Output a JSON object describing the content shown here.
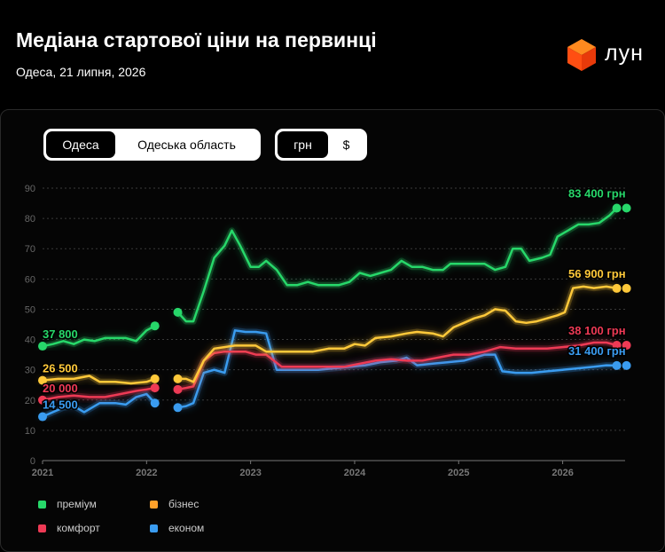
{
  "header": {
    "title": "Медіана стартової ціни на первинці",
    "subtitle": "Одеса, 21 липня, 2026",
    "logo_text": "лун"
  },
  "controls": {
    "region_tabs": [
      {
        "label": "Одеса",
        "active": true
      },
      {
        "label": "Одеська область",
        "active": false
      }
    ],
    "currency_tabs": [
      {
        "label": "грн",
        "active": true
      },
      {
        "label": "$",
        "active": false
      }
    ]
  },
  "colors": {
    "premium": "#27d86a",
    "business": "#ffc93a",
    "comfort": "#ee3a55",
    "econom": "#3a9cf0"
  },
  "chart_data": {
    "type": "line",
    "ylim": [
      0,
      90
    ],
    "yticks": [
      0,
      10,
      20,
      30,
      40,
      50,
      60,
      70,
      80,
      90
    ],
    "xlim": [
      2021.0,
      2026.6
    ],
    "xticks": [
      {
        "value": 2021,
        "label": "2021"
      },
      {
        "value": 2022,
        "label": "2022"
      },
      {
        "value": 2023,
        "label": "2023"
      },
      {
        "value": 2024,
        "label": "2024"
      },
      {
        "value": 2025,
        "label": "2025"
      },
      {
        "value": 2026,
        "label": "2026"
      }
    ],
    "grid": true,
    "legend_position": "bottom",
    "series": [
      {
        "name": "преміум",
        "key": "premium",
        "segments": [
          [
            [
              2021.0,
              37.8
            ],
            [
              2021.1,
              38.5
            ],
            [
              2021.2,
              39.5
            ],
            [
              2021.3,
              38.5
            ],
            [
              2021.4,
              40
            ],
            [
              2021.5,
              39.5
            ],
            [
              2021.6,
              40.5
            ],
            [
              2021.7,
              40.5
            ],
            [
              2021.8,
              40.5
            ],
            [
              2021.9,
              39.5
            ],
            [
              2022.0,
              43
            ],
            [
              2022.08,
              44.5
            ]
          ],
          [
            [
              2022.3,
              49
            ],
            [
              2022.38,
              46
            ],
            [
              2022.45,
              46
            ],
            [
              2022.55,
              56
            ],
            [
              2022.65,
              67
            ],
            [
              2022.75,
              71
            ],
            [
              2022.82,
              76
            ],
            [
              2022.9,
              71
            ],
            [
              2023.0,
              64
            ],
            [
              2023.08,
              64
            ],
            [
              2023.15,
              66
            ],
            [
              2023.25,
              63
            ],
            [
              2023.35,
              58
            ],
            [
              2023.45,
              58
            ],
            [
              2023.55,
              59
            ],
            [
              2023.65,
              58
            ],
            [
              2023.75,
              58
            ],
            [
              2023.85,
              58
            ],
            [
              2023.95,
              59
            ],
            [
              2024.05,
              62
            ],
            [
              2024.15,
              61
            ],
            [
              2024.25,
              62
            ],
            [
              2024.35,
              63
            ],
            [
              2024.45,
              66
            ],
            [
              2024.55,
              64
            ],
            [
              2024.65,
              64
            ],
            [
              2024.75,
              63
            ],
            [
              2024.85,
              63
            ],
            [
              2024.92,
              65
            ],
            [
              2025.05,
              65
            ],
            [
              2025.15,
              65
            ],
            [
              2025.25,
              65
            ],
            [
              2025.35,
              63
            ],
            [
              2025.45,
              64
            ],
            [
              2025.52,
              70
            ],
            [
              2025.6,
              70
            ],
            [
              2025.68,
              66
            ],
            [
              2025.8,
              67
            ],
            [
              2025.88,
              68
            ],
            [
              2025.95,
              74
            ],
            [
              2026.05,
              76
            ],
            [
              2026.15,
              78
            ],
            [
              2026.25,
              78
            ],
            [
              2026.35,
              78.5
            ],
            [
              2026.45,
              81
            ],
            [
              2026.52,
              83.4
            ]
          ]
        ],
        "start_label": "37 800",
        "end_label": "83 400 грн"
      },
      {
        "name": "бізнес",
        "key": "business",
        "segments": [
          [
            [
              2021.0,
              26.5
            ],
            [
              2021.15,
              27
            ],
            [
              2021.3,
              27
            ],
            [
              2021.45,
              28
            ],
            [
              2021.55,
              26
            ],
            [
              2021.7,
              26
            ],
            [
              2021.85,
              25.5
            ],
            [
              2022.0,
              26
            ],
            [
              2022.08,
              27
            ]
          ],
          [
            [
              2022.3,
              27
            ],
            [
              2022.38,
              27
            ],
            [
              2022.45,
              26
            ],
            [
              2022.55,
              33
            ],
            [
              2022.65,
              37
            ],
            [
              2022.75,
              37.5
            ],
            [
              2022.85,
              38
            ],
            [
              2022.95,
              38
            ],
            [
              2023.05,
              38
            ],
            [
              2023.15,
              36
            ],
            [
              2023.3,
              36
            ],
            [
              2023.45,
              36
            ],
            [
              2023.6,
              36
            ],
            [
              2023.75,
              37
            ],
            [
              2023.9,
              37
            ],
            [
              2024.0,
              38.5
            ],
            [
              2024.1,
              38
            ],
            [
              2024.2,
              40.5
            ],
            [
              2024.35,
              41
            ],
            [
              2024.5,
              42
            ],
            [
              2024.6,
              42.5
            ],
            [
              2024.75,
              42
            ],
            [
              2024.85,
              41
            ],
            [
              2024.95,
              44
            ],
            [
              2025.05,
              45.5
            ],
            [
              2025.15,
              47
            ],
            [
              2025.25,
              48
            ],
            [
              2025.35,
              50
            ],
            [
              2025.45,
              49.5
            ],
            [
              2025.55,
              46
            ],
            [
              2025.65,
              45.5
            ],
            [
              2025.75,
              46
            ],
            [
              2025.85,
              47
            ],
            [
              2025.95,
              48
            ],
            [
              2026.02,
              49
            ],
            [
              2026.1,
              57
            ],
            [
              2026.2,
              57.5
            ],
            [
              2026.3,
              57
            ],
            [
              2026.42,
              57.5
            ],
            [
              2026.52,
              56.9
            ]
          ]
        ],
        "start_label": "26 500",
        "end_label": "56 900 грн"
      },
      {
        "name": "комфорт",
        "key": "comfort",
        "segments": [
          [
            [
              2021.0,
              20
            ],
            [
              2021.15,
              21
            ],
            [
              2021.3,
              21.5
            ],
            [
              2021.45,
              21
            ],
            [
              2021.6,
              21
            ],
            [
              2021.75,
              22
            ],
            [
              2021.9,
              23
            ],
            [
              2022.0,
              23.5
            ],
            [
              2022.08,
              24
            ]
          ],
          [
            [
              2022.3,
              23.5
            ],
            [
              2022.38,
              24
            ],
            [
              2022.45,
              24.5
            ],
            [
              2022.55,
              33
            ],
            [
              2022.65,
              35.5
            ],
            [
              2022.75,
              36
            ],
            [
              2022.85,
              36
            ],
            [
              2022.95,
              36
            ],
            [
              2023.05,
              35
            ],
            [
              2023.15,
              35
            ],
            [
              2023.3,
              31
            ],
            [
              2023.45,
              31
            ],
            [
              2023.6,
              31
            ],
            [
              2023.75,
              31
            ],
            [
              2023.9,
              31
            ],
            [
              2024.05,
              32
            ],
            [
              2024.2,
              33
            ],
            [
              2024.35,
              33.5
            ],
            [
              2024.5,
              33
            ],
            [
              2024.65,
              33
            ],
            [
              2024.8,
              34
            ],
            [
              2024.95,
              35
            ],
            [
              2025.1,
              35
            ],
            [
              2025.25,
              36
            ],
            [
              2025.4,
              37.5
            ],
            [
              2025.55,
              37
            ],
            [
              2025.7,
              37
            ],
            [
              2025.85,
              37
            ],
            [
              2026.0,
              37.5
            ],
            [
              2026.15,
              38
            ],
            [
              2026.3,
              39
            ],
            [
              2026.42,
              39
            ],
            [
              2026.52,
              38.1
            ]
          ]
        ],
        "start_label": "20 000",
        "end_label": "38 100 грн"
      },
      {
        "name": "економ",
        "key": "econom",
        "segments": [
          [
            [
              2021.0,
              14.5
            ],
            [
              2021.1,
              16
            ],
            [
              2021.2,
              17.5
            ],
            [
              2021.3,
              18
            ],
            [
              2021.4,
              16
            ],
            [
              2021.55,
              19
            ],
            [
              2021.7,
              19
            ],
            [
              2021.8,
              18.5
            ],
            [
              2021.9,
              21
            ],
            [
              2022.0,
              22
            ],
            [
              2022.08,
              19
            ]
          ],
          [
            [
              2022.3,
              17.5
            ],
            [
              2022.38,
              18
            ],
            [
              2022.45,
              19
            ],
            [
              2022.55,
              29
            ],
            [
              2022.65,
              30
            ],
            [
              2022.75,
              29
            ],
            [
              2022.85,
              43
            ],
            [
              2022.95,
              42.5
            ],
            [
              2023.05,
              42.5
            ],
            [
              2023.15,
              42
            ],
            [
              2023.25,
              30
            ],
            [
              2023.35,
              30
            ],
            [
              2023.5,
              30
            ],
            [
              2023.65,
              30
            ],
            [
              2023.8,
              30.5
            ],
            [
              2023.95,
              31
            ],
            [
              2024.1,
              31.5
            ],
            [
              2024.25,
              32.5
            ],
            [
              2024.4,
              33
            ],
            [
              2024.5,
              34
            ],
            [
              2024.6,
              31.5
            ],
            [
              2024.75,
              32
            ],
            [
              2024.9,
              32.5
            ],
            [
              2025.05,
              33
            ],
            [
              2025.15,
              34
            ],
            [
              2025.25,
              35
            ],
            [
              2025.35,
              35
            ],
            [
              2025.42,
              29.5
            ],
            [
              2025.55,
              29
            ],
            [
              2025.7,
              29
            ],
            [
              2025.85,
              29.5
            ],
            [
              2026.0,
              30
            ],
            [
              2026.15,
              30.5
            ],
            [
              2026.3,
              31
            ],
            [
              2026.42,
              31.5
            ],
            [
              2026.52,
              31.4
            ]
          ]
        ],
        "start_label": "14 500",
        "end_label": "31 400 грн"
      }
    ]
  }
}
